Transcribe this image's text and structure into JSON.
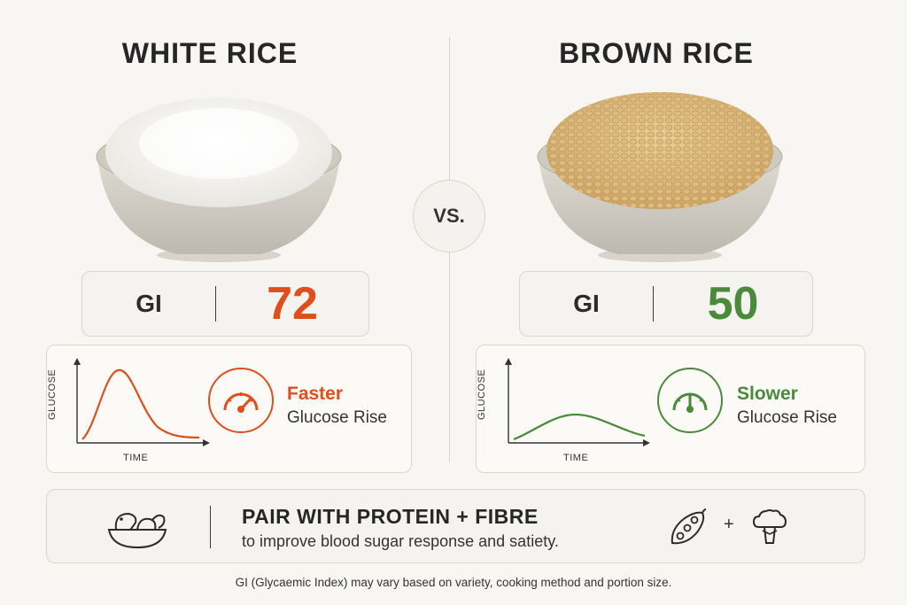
{
  "left": {
    "title": "WHITE RICE",
    "gi_label": "GI",
    "gi_value": "72",
    "color": "#e04e1c",
    "rise_word": "Faster",
    "rise_sub": "Glucose Rise",
    "x_axis": "TIME",
    "y_axis": "GLUCOSE"
  },
  "right": {
    "title": "BROWN RICE",
    "gi_label": "GI",
    "gi_value": "50",
    "color": "#4a8a3a",
    "rise_word": "Slower",
    "rise_sub": "Glucose Rise",
    "x_axis": "TIME",
    "y_axis": "GLUCOSE"
  },
  "vs": "VS.",
  "tip": {
    "title": "PAIR WITH PROTEIN + FIBRE",
    "subtitle": "to improve blood sugar response and satiety.",
    "plus": "+"
  },
  "footnote": "GI (Glycaemic Index) may vary based on variety, cooking method and portion size."
}
